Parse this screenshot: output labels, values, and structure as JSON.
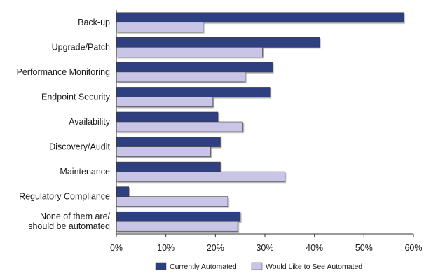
{
  "chart_data": {
    "type": "bar",
    "orientation": "horizontal",
    "categories": [
      [
        "Back-up"
      ],
      [
        "Upgrade/Patch"
      ],
      [
        "Performance Monitoring"
      ],
      [
        "Endpoint Security"
      ],
      [
        "Availability"
      ],
      [
        "Discovery/Audit"
      ],
      [
        "Maintenance"
      ],
      [
        "Regulatory Compliance"
      ],
      [
        "None of them are/",
        "should be automated"
      ]
    ],
    "series": [
      {
        "name": "Currently Automated",
        "color": "#2e3f7f",
        "values": [
          58,
          41,
          31.5,
          31,
          20.5,
          21,
          21,
          2.5,
          25
        ]
      },
      {
        "name": "Would Like to See Automated",
        "color": "#c9c5e6",
        "values": [
          17.5,
          29.5,
          26,
          19.5,
          25.5,
          19,
          34,
          22.5,
          24.5
        ]
      }
    ],
    "xlim": [
      0,
      60
    ],
    "xticks": [
      0,
      10,
      20,
      30,
      40,
      50,
      60
    ],
    "tick_labels": [
      "0%",
      "10%",
      "20%",
      "30%",
      "40%",
      "50%",
      "60%"
    ],
    "grid": false,
    "legend_position": "bottom"
  }
}
